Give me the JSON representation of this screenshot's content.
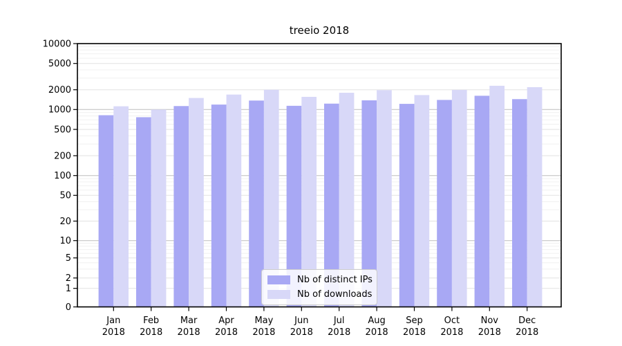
{
  "title": "treeio 2018",
  "chart_data": {
    "type": "bar",
    "title": "treeio 2018",
    "categories": [
      "Jan 2018",
      "Feb 2018",
      "Mar 2018",
      "Apr 2018",
      "May 2018",
      "Jun 2018",
      "Jul 2018",
      "Aug 2018",
      "Sep 2018",
      "Oct 2018",
      "Nov 2018",
      "Dec 2018"
    ],
    "series": [
      {
        "name": "Nb of distinct IPs",
        "color": "#a8a8f4",
        "values": [
          820,
          765,
          1130,
          1190,
          1370,
          1140,
          1230,
          1380,
          1220,
          1400,
          1620,
          1440
        ]
      },
      {
        "name": "Nb of downloads",
        "color": "#d8d8f8",
        "values": [
          1120,
          1000,
          1500,
          1690,
          2000,
          1560,
          1800,
          1970,
          1660,
          1990,
          2300,
          2190
        ]
      }
    ],
    "yscale": "symlog",
    "ylim": [
      0,
      10000
    ],
    "yticks": [
      0,
      1,
      2,
      5,
      10,
      20,
      50,
      100,
      200,
      500,
      1000,
      2000,
      5000,
      10000
    ],
    "xlabel": "",
    "ylabel": "",
    "grid": true,
    "legend_position": "lower center"
  },
  "colors": {
    "grid_decade": "#bdbdbd",
    "grid_labeled": "#e2e2e2",
    "grid_minor": "#f0f0f0",
    "axis": "#000000"
  }
}
